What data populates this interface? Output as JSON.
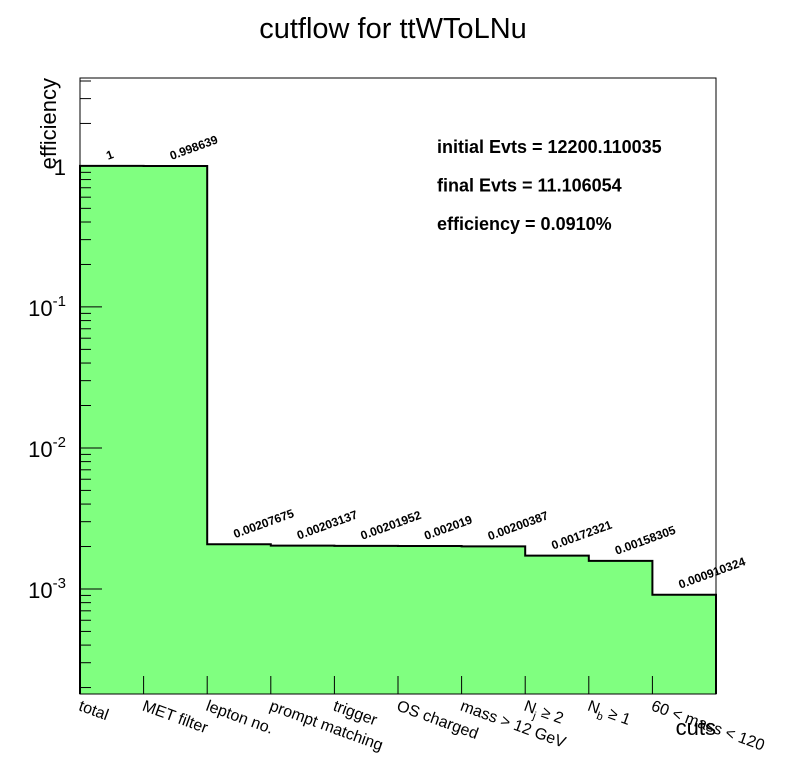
{
  "chart_data": {
    "type": "bar",
    "title": "cutflow for ttWToLNu",
    "xlabel": "cuts",
    "ylabel": "efficiency",
    "yscale": "log",
    "ylim": [
      0.00018,
      4.2
    ],
    "grid": false,
    "fill_color": "#80ff80",
    "line_color": "#000000",
    "categories": [
      "total",
      "MET filter",
      "lepton no.",
      "prompt matching",
      "trigger",
      "OS charged",
      "mass > 12 GeV",
      "N_j ≥ 2",
      "N_b ≥ 1",
      "60 < mass < 120"
    ],
    "values": [
      1,
      0.998639,
      0.00207675,
      0.00203137,
      0.00201952,
      0.002019,
      0.00200387,
      0.00172321,
      0.00158305,
      0.000910324
    ],
    "value_labels": [
      "1",
      "0.998639",
      "0.00207675",
      "0.00203137",
      "0.00201952",
      "0.002019",
      "0.00200387",
      "0.00172321",
      "0.00158305",
      "0.000910324"
    ],
    "y_ticks": [
      {
        "exp": "0",
        "value": 1
      },
      {
        "exp": "-1",
        "value": 0.1
      },
      {
        "exp": "-2",
        "value": 0.01
      },
      {
        "exp": "-3",
        "value": 0.001
      }
    ],
    "annotations": [
      "initial Evts = 12200.110035",
      "final Evts = 11.106054",
      "efficiency = 0.0910%"
    ]
  }
}
